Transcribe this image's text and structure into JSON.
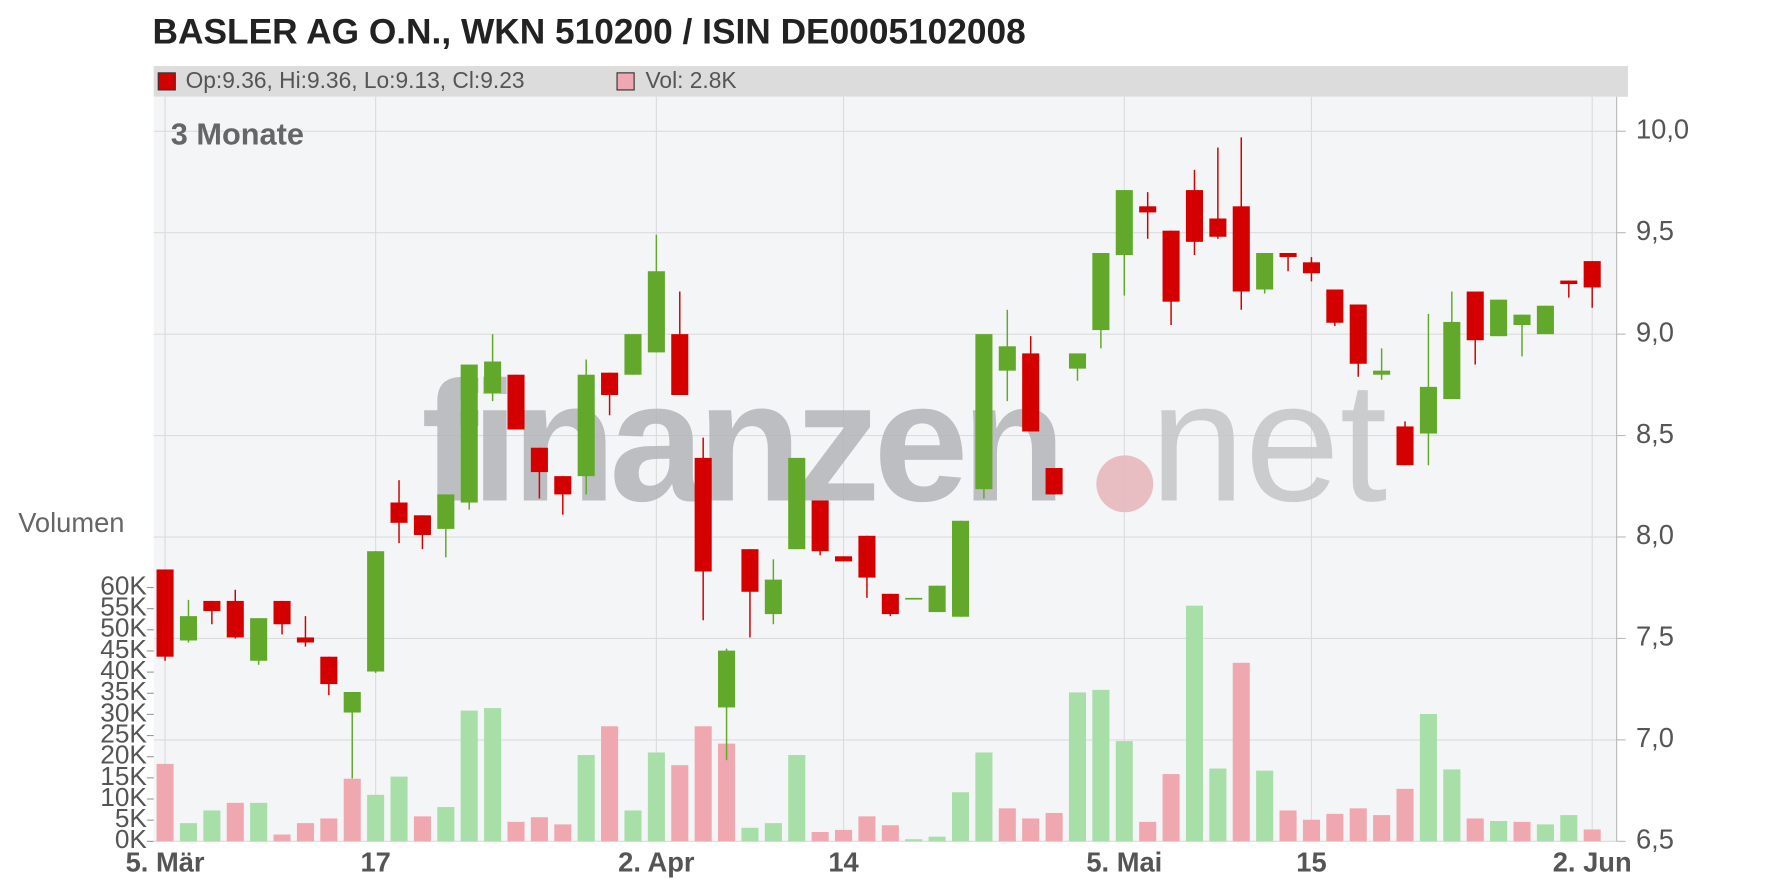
{
  "chart_data": {
    "type": "candlestick",
    "title": "BASLER AG O.N., WKN 510200 / ISIN DE0005102008",
    "ohlc_legend": "Op:9.36, Hi:9.36, Lo:9.13, Cl:9.23",
    "volume_legend": "Vol: 2.8K",
    "period_label": "3 Monate",
    "volume_axis_label": "Volumen",
    "watermark": [
      "finanzen",
      "net"
    ],
    "up_color": "#62a82a",
    "down_color": "#d40000",
    "volume_up_color": "#a8dea8",
    "volume_down_color": "#f0a8b0",
    "grid": true,
    "categories": [
      "5. Mär",
      null,
      null,
      null,
      null,
      null,
      null,
      null,
      null,
      "17",
      null,
      null,
      null,
      null,
      null,
      null,
      null,
      null,
      null,
      null,
      null,
      "2. Apr",
      null,
      null,
      null,
      null,
      null,
      null,
      null,
      "14",
      null,
      null,
      null,
      null,
      null,
      null,
      null,
      null,
      null,
      null,
      null,
      "5. Mai",
      null,
      null,
      null,
      null,
      null,
      null,
      null,
      "15",
      null,
      null,
      null,
      null,
      null,
      null,
      null,
      null,
      null,
      null,
      null,
      "2. Jun"
    ],
    "open": [
      7.84,
      7.49,
      7.685,
      7.685,
      7.39,
      7.685,
      7.505,
      7.41,
      7.135,
      7.337,
      8.17,
      8.107,
      8.04,
      8.17,
      8.71,
      8.8,
      8.44,
      8.3,
      8.3,
      8.81,
      8.8,
      8.91,
      9.0,
      8.39,
      7.16,
      7.94,
      7.62,
      7.94,
      8.18,
      7.905,
      8.006,
      7.72,
      7.695,
      7.63,
      7.607,
      8.236,
      8.82,
      8.905,
      8.34,
      8.83,
      9.02,
      9.39,
      9.63,
      9.51,
      9.71,
      9.57,
      9.63,
      9.22,
      9.4,
      9.354,
      9.22,
      9.146,
      8.8,
      8.545,
      8.51,
      8.68,
      9.21,
      8.99,
      9.045,
      9.0,
      9.264,
      9.36
    ],
    "high": [
      7.84,
      7.69,
      7.685,
      7.74,
      7.6,
      7.685,
      7.61,
      7.41,
      7.236,
      7.93,
      8.28,
      8.107,
      8.21,
      8.85,
      9.0,
      8.8,
      8.44,
      8.3,
      8.875,
      8.81,
      9.0,
      9.49,
      9.21,
      8.49,
      7.45,
      7.94,
      7.89,
      8.39,
      8.18,
      7.905,
      8.006,
      7.72,
      7.7,
      7.76,
      8.08,
      9.0,
      9.12,
      8.99,
      8.34,
      8.905,
      9.4,
      9.71,
      9.7,
      9.51,
      9.81,
      9.92,
      9.97,
      9.4,
      9.4,
      9.38,
      9.22,
      9.146,
      8.93,
      8.57,
      9.1,
      9.21,
      9.21,
      9.17,
      9.096,
      9.14,
      9.264,
      9.36
    ],
    "low": [
      7.39,
      7.48,
      7.57,
      7.5,
      7.37,
      7.52,
      7.46,
      7.22,
      6.81,
      7.33,
      7.97,
      7.94,
      7.9,
      8.135,
      8.67,
      8.53,
      8.19,
      8.11,
      8.21,
      8.6,
      8.8,
      8.91,
      8.7,
      7.59,
      6.9,
      7.505,
      7.57,
      7.94,
      7.91,
      7.88,
      7.7,
      7.61,
      7.695,
      7.63,
      7.607,
      8.19,
      8.67,
      8.52,
      8.21,
      8.77,
      8.93,
      9.19,
      9.47,
      9.045,
      9.39,
      9.47,
      9.12,
      9.2,
      9.31,
      9.26,
      9.04,
      8.79,
      8.775,
      8.354,
      8.354,
      8.68,
      8.85,
      8.99,
      8.89,
      9.0,
      9.18,
      9.13
    ],
    "close": [
      7.41,
      7.61,
      7.635,
      7.505,
      7.6,
      7.57,
      7.48,
      7.275,
      7.236,
      7.93,
      8.07,
      8.01,
      8.21,
      8.85,
      8.865,
      8.53,
      8.32,
      8.21,
      8.8,
      8.7,
      9.0,
      9.31,
      8.7,
      7.83,
      7.44,
      7.73,
      7.79,
      8.39,
      7.93,
      7.88,
      7.8,
      7.62,
      7.7,
      7.76,
      8.08,
      9.0,
      8.94,
      8.52,
      8.21,
      8.905,
      9.4,
      9.71,
      9.6,
      9.16,
      9.455,
      9.48,
      9.21,
      9.4,
      9.38,
      9.3,
      9.056,
      8.854,
      8.82,
      8.354,
      8.74,
      9.06,
      8.97,
      9.17,
      9.096,
      9.14,
      9.247,
      9.23
    ],
    "volume": [
      18300,
      4300,
      7300,
      9100,
      9100,
      1600,
      4300,
      5400,
      14800,
      11000,
      15300,
      5900,
      8100,
      30900,
      31500,
      4600,
      5700,
      4000,
      20400,
      27200,
      7300,
      21000,
      18000,
      27200,
      23100,
      3200,
      4300,
      20400,
      2200,
      2700,
      5900,
      3800,
      500,
      1100,
      11600,
      21000,
      7800,
      5400,
      6700,
      35200,
      35800,
      23700,
      4600,
      15900,
      55700,
      17200,
      42200,
      16700,
      7300,
      5100,
      6500,
      7800,
      6200,
      12400,
      30100,
      17000,
      5400,
      4800,
      4600,
      4000,
      6200,
      2800
    ],
    "ylim": [
      6.5,
      10.17
    ],
    "yticks": [
      {
        "value": 6.5,
        "label": "6,5"
      },
      {
        "value": 7.0,
        "label": "7,0"
      },
      {
        "value": 7.5,
        "label": "7,5"
      },
      {
        "value": 8.0,
        "label": "8,0"
      },
      {
        "value": 8.5,
        "label": "8,5"
      },
      {
        "value": 9.0,
        "label": "9,0"
      },
      {
        "value": 9.5,
        "label": "9,5"
      },
      {
        "value": 10.0,
        "label": "10,0"
      }
    ],
    "y2lim": [
      0,
      176000
    ],
    "y2ticks": [
      {
        "value": 0,
        "label": "0K"
      },
      {
        "value": 5000,
        "label": "5K"
      },
      {
        "value": 10000,
        "label": "10K"
      },
      {
        "value": 15000,
        "label": "15K"
      },
      {
        "value": 20000,
        "label": "20K"
      },
      {
        "value": 25000,
        "label": "25K"
      },
      {
        "value": 30000,
        "label": "30K"
      },
      {
        "value": 35000,
        "label": "35K"
      },
      {
        "value": 40000,
        "label": "40K"
      },
      {
        "value": 45000,
        "label": "45K"
      },
      {
        "value": 50000,
        "label": "50K"
      },
      {
        "value": 55000,
        "label": "55K"
      },
      {
        "value": 60000,
        "label": "60K"
      }
    ]
  }
}
